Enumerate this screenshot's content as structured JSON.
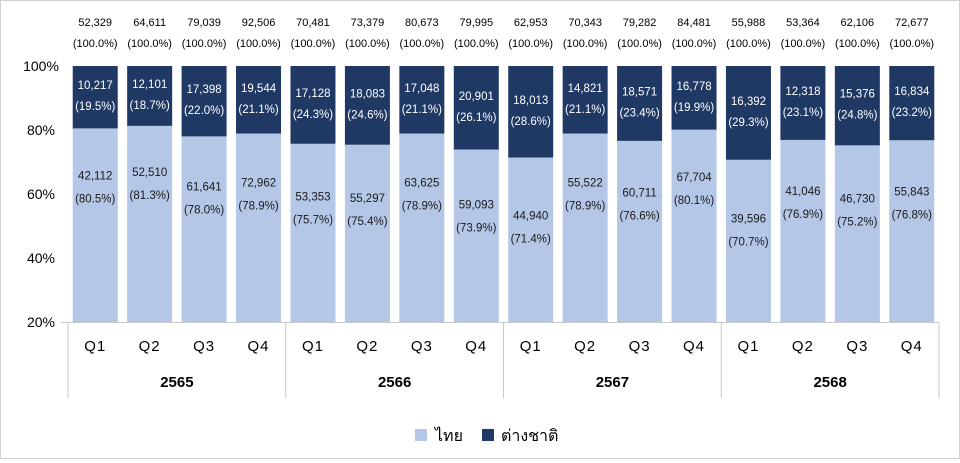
{
  "chart_data": {
    "type": "bar",
    "stacked": "percent",
    "categories": [
      "Q1",
      "Q2",
      "Q3",
      "Q4",
      "Q1",
      "Q2",
      "Q3",
      "Q4",
      "Q1",
      "Q2",
      "Q3",
      "Q4",
      "Q1",
      "Q2",
      "Q3",
      "Q4"
    ],
    "groups": [
      "2565",
      "2566",
      "2567",
      "2568"
    ],
    "ylim": [
      20,
      100
    ],
    "yticks": [
      "20%",
      "40%",
      "60%",
      "80%",
      "100%"
    ],
    "ytick_values": [
      20,
      40,
      60,
      80,
      100
    ],
    "grid": false,
    "legend_position": "bottom",
    "totals": [
      "52,329",
      "64,611",
      "79,039",
      "92,506",
      "70,481",
      "73,379",
      "80,673",
      "79,995",
      "62,953",
      "70,343",
      "79,282",
      "84,481",
      "55,988",
      "53,364",
      "62,106",
      "72,677"
    ],
    "total_pct_label": "(100.0%)",
    "series": [
      {
        "name": "ไทย",
        "color": "#b4c7e7",
        "values": [
          42112,
          52510,
          61641,
          72962,
          53353,
          55297,
          63625,
          59093,
          44940,
          55522,
          60711,
          67704,
          39596,
          41046,
          46730,
          55843
        ],
        "labels": [
          "42,112",
          "52,510",
          "61,641",
          "72,962",
          "53,353",
          "55,297",
          "63,625",
          "59,093",
          "44,940",
          "55,522",
          "60,711",
          "67,704",
          "39,596",
          "41,046",
          "46,730",
          "55,843"
        ],
        "percents": [
          80.5,
          81.3,
          78.0,
          78.9,
          75.7,
          75.4,
          78.9,
          73.9,
          71.4,
          78.9,
          76.6,
          80.1,
          70.7,
          76.9,
          75.2,
          76.8
        ]
      },
      {
        "name": "ต่างชาติ",
        "color": "#1f3864",
        "values": [
          10217,
          12101,
          17398,
          19544,
          17128,
          18083,
          17048,
          20901,
          18013,
          14821,
          18571,
          16778,
          16392,
          12318,
          15376,
          16834
        ],
        "labels": [
          "10,217",
          "12,101",
          "17,398",
          "19,544",
          "17,128",
          "18,083",
          "17,048",
          "20,901",
          "18,013",
          "14,821",
          "18,571",
          "16,778",
          "16,392",
          "12,318",
          "15,376",
          "16,834"
        ],
        "percents": [
          19.5,
          18.7,
          22.0,
          21.1,
          24.3,
          24.6,
          21.1,
          26.1,
          28.6,
          21.1,
          23.4,
          19.9,
          29.3,
          23.1,
          24.8,
          23.2
        ]
      }
    ]
  }
}
